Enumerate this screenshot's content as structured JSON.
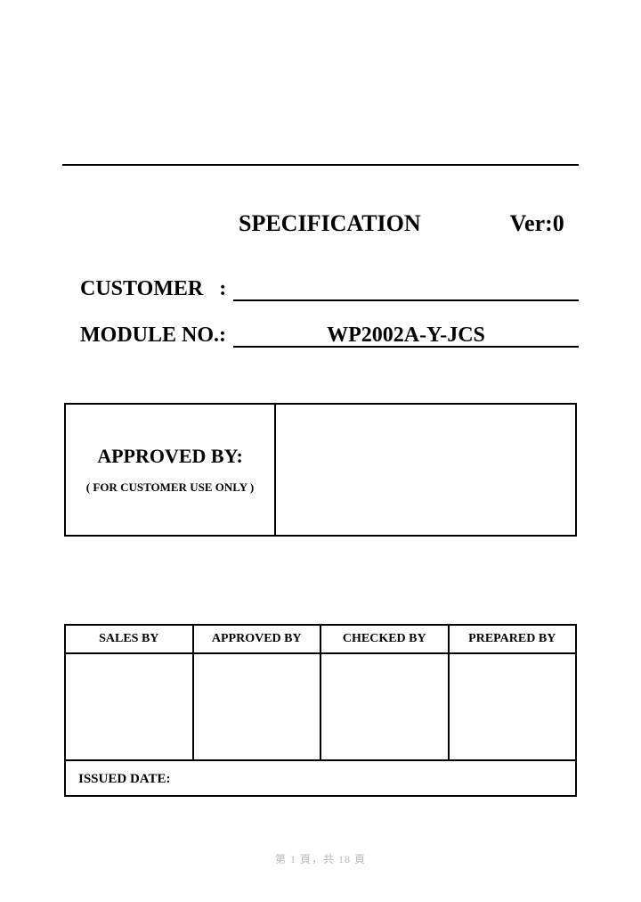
{
  "border_color": "#000000",
  "background_color": "#ffffff",
  "text_color": "#000000",
  "footer_color": "#b8b8b8",
  "header": {
    "title": "SPECIFICATION",
    "version_label": "Ver:0"
  },
  "fields": {
    "customer": {
      "label": "CUSTOMER   :",
      "value": ""
    },
    "module": {
      "label": "MODULE NO.:",
      "value": "WP2002A-Y-JCS"
    }
  },
  "approved_box": {
    "title": "APPROVED BY:",
    "note": "( FOR CUSTOMER USE ONLY )"
  },
  "sig_table": {
    "columns": [
      "SALES BY",
      "APPROVED BY",
      "CHECKED BY",
      "PREPARED BY"
    ],
    "issued_label": "ISSUED DATE:"
  },
  "footer": {
    "text": "第 1 頁，共 18 頁"
  }
}
